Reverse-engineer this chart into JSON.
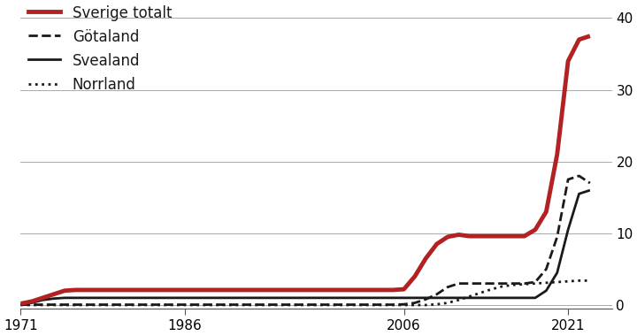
{
  "series": {
    "Sverige totalt": {
      "color": "#b22222",
      "linewidth": 3.5,
      "linestyle": "solid",
      "years": [
        1971,
        1972,
        1973,
        1974,
        1975,
        1976,
        1977,
        1978,
        1979,
        1980,
        1981,
        1982,
        1983,
        1984,
        1985,
        1986,
        1987,
        1988,
        1989,
        1990,
        1991,
        1992,
        1993,
        1994,
        1995,
        1996,
        1997,
        1998,
        1999,
        2000,
        2001,
        2002,
        2003,
        2004,
        2005,
        2006,
        2007,
        2008,
        2009,
        2010,
        2011,
        2012,
        2013,
        2014,
        2015,
        2016,
        2017,
        2018,
        2019,
        2020,
        2021,
        2022,
        2023
      ],
      "values": [
        0.2,
        0.5,
        1.0,
        1.5,
        2.0,
        2.1,
        2.1,
        2.1,
        2.1,
        2.1,
        2.1,
        2.1,
        2.1,
        2.1,
        2.1,
        2.1,
        2.1,
        2.1,
        2.1,
        2.1,
        2.1,
        2.1,
        2.1,
        2.1,
        2.1,
        2.1,
        2.1,
        2.1,
        2.1,
        2.1,
        2.1,
        2.1,
        2.1,
        2.1,
        2.1,
        2.2,
        4.0,
        6.5,
        8.5,
        9.5,
        9.8,
        9.6,
        9.6,
        9.6,
        9.6,
        9.6,
        9.6,
        10.5,
        13.0,
        21.0,
        34.0,
        37.0,
        37.5
      ]
    },
    "Götaland": {
      "color": "#1a1a1a",
      "linewidth": 2.0,
      "linestyle": "dashed",
      "years": [
        1971,
        1972,
        1973,
        1974,
        1975,
        1976,
        1977,
        1978,
        1979,
        1980,
        1981,
        1982,
        1983,
        1984,
        1985,
        1986,
        1987,
        1988,
        1989,
        1990,
        1991,
        1992,
        1993,
        1994,
        1995,
        1996,
        1997,
        1998,
        1999,
        2000,
        2001,
        2002,
        2003,
        2004,
        2005,
        2006,
        2007,
        2008,
        2009,
        2010,
        2011,
        2012,
        2013,
        2014,
        2015,
        2016,
        2017,
        2018,
        2019,
        2020,
        2021,
        2022,
        2023
      ],
      "values": [
        0.05,
        0.05,
        0.05,
        0.05,
        0.05,
        0.05,
        0.05,
        0.05,
        0.05,
        0.05,
        0.05,
        0.05,
        0.05,
        0.05,
        0.05,
        0.05,
        0.05,
        0.05,
        0.05,
        0.05,
        0.05,
        0.05,
        0.05,
        0.05,
        0.05,
        0.05,
        0.05,
        0.05,
        0.05,
        0.05,
        0.05,
        0.05,
        0.05,
        0.05,
        0.05,
        0.1,
        0.3,
        0.8,
        1.5,
        2.5,
        3.0,
        3.0,
        3.0,
        3.0,
        3.0,
        3.0,
        3.0,
        3.2,
        5.0,
        9.5,
        17.5,
        18.0,
        17.0
      ]
    },
    "Svealand": {
      "color": "#1a1a1a",
      "linewidth": 2.0,
      "linestyle": "solid",
      "years": [
        1971,
        1972,
        1973,
        1974,
        1975,
        1976,
        1977,
        1978,
        1979,
        1980,
        1981,
        1982,
        1983,
        1984,
        1985,
        1986,
        1987,
        1988,
        1989,
        1990,
        1991,
        1992,
        1993,
        1994,
        1995,
        1996,
        1997,
        1998,
        1999,
        2000,
        2001,
        2002,
        2003,
        2004,
        2005,
        2006,
        2007,
        2008,
        2009,
        2010,
        2011,
        2012,
        2013,
        2014,
        2015,
        2016,
        2017,
        2018,
        2019,
        2020,
        2021,
        2022,
        2023
      ],
      "values": [
        0.05,
        0.3,
        0.7,
        0.9,
        1.0,
        1.0,
        1.0,
        1.0,
        1.0,
        1.0,
        1.0,
        1.0,
        1.0,
        1.0,
        1.0,
        1.0,
        1.0,
        1.0,
        1.0,
        1.0,
        1.0,
        1.0,
        1.0,
        1.0,
        1.0,
        1.0,
        1.0,
        1.0,
        1.0,
        1.0,
        1.0,
        1.0,
        1.0,
        1.0,
        1.0,
        1.0,
        1.0,
        1.0,
        1.0,
        1.0,
        1.0,
        1.0,
        1.0,
        1.0,
        1.0,
        1.0,
        1.0,
        1.0,
        2.0,
        4.5,
        10.5,
        15.5,
        16.0
      ]
    },
    "Norrland": {
      "color": "#1a1a1a",
      "linewidth": 2.0,
      "linestyle": "dotted",
      "years": [
        1971,
        1972,
        1973,
        1974,
        1975,
        1976,
        1977,
        1978,
        1979,
        1980,
        1981,
        1982,
        1983,
        1984,
        1985,
        1986,
        1987,
        1988,
        1989,
        1990,
        1991,
        1992,
        1993,
        1994,
        1995,
        1996,
        1997,
        1998,
        1999,
        2000,
        2001,
        2002,
        2003,
        2004,
        2005,
        2006,
        2007,
        2008,
        2009,
        2010,
        2011,
        2012,
        2013,
        2014,
        2015,
        2016,
        2017,
        2018,
        2019,
        2020,
        2021,
        2022,
        2023
      ],
      "values": [
        0.0,
        0.0,
        0.0,
        0.0,
        0.0,
        0.0,
        0.0,
        0.0,
        0.0,
        0.0,
        0.0,
        0.0,
        0.0,
        0.0,
        0.0,
        0.0,
        0.0,
        0.0,
        0.0,
        0.0,
        0.0,
        0.0,
        0.0,
        0.0,
        0.0,
        0.0,
        0.0,
        0.0,
        0.0,
        0.0,
        0.0,
        0.0,
        0.0,
        0.0,
        0.0,
        0.0,
        0.0,
        0.0,
        0.1,
        0.3,
        0.7,
        1.2,
        1.7,
        2.2,
        2.6,
        2.8,
        2.9,
        3.0,
        3.1,
        3.2,
        3.3,
        3.4,
        3.4
      ]
    }
  },
  "legend_items": [
    {
      "label": "Sverige totalt",
      "color": "#b22222",
      "linestyle": "solid",
      "linewidth": 3.5
    },
    {
      "label": "Götaland",
      "color": "#1a1a1a",
      "linestyle": "dashed",
      "linewidth": 2.0
    },
    {
      "label": "Svealand",
      "color": "#1a1a1a",
      "linestyle": "solid",
      "linewidth": 2.0
    },
    {
      "label": "Norrland",
      "color": "#1a1a1a",
      "linestyle": "dotted",
      "linewidth": 2.0
    }
  ],
  "xticks": [
    1971,
    1986,
    2006,
    2021
  ],
  "yticks": [
    0,
    10,
    20,
    30,
    40
  ],
  "ylim": [
    -0.5,
    42
  ],
  "xlim": [
    1971,
    2025
  ],
  "background_color": "#ffffff"
}
